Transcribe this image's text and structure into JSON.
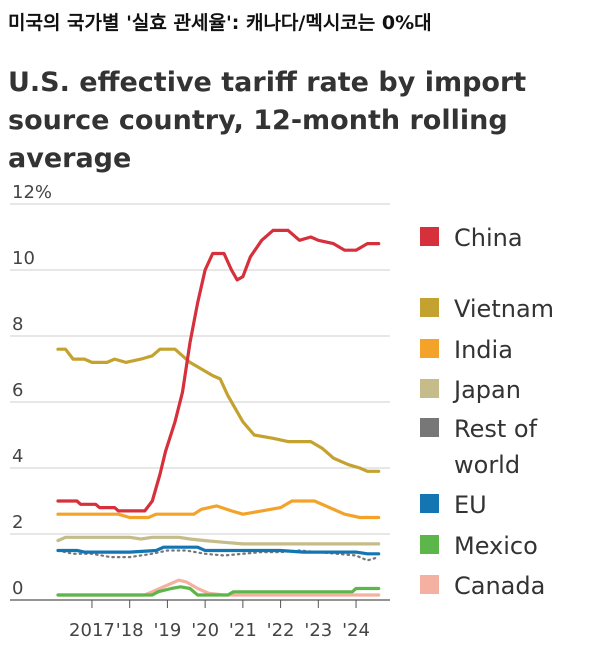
{
  "headline": "미국의 국가별 '실효 관세율': 캐나다/멕시코는 0%대",
  "title": "U.S. effective tariff rate by import source country, 12-month rolling average",
  "chart_data": {
    "type": "line",
    "title": "U.S. effective tariff rate by import source country, 12-month rolling average",
    "xlabel": "",
    "ylabel": "",
    "x_ticks": [
      "2017",
      "'18",
      "'19",
      "'20",
      "'21",
      "'22",
      "'23",
      "'24"
    ],
    "y_ticks": [
      "12%",
      "10",
      "8",
      "6",
      "4",
      "2",
      "0"
    ],
    "xlim": [
      2016.1,
      2024.9
    ],
    "ylim": [
      0,
      12
    ],
    "grid": "horizontal",
    "legend_position": "right",
    "series": [
      {
        "name": "China",
        "color": "#d5303b",
        "points": [
          [
            2016.1,
            3.0
          ],
          [
            2016.6,
            3.0
          ],
          [
            2016.7,
            2.9
          ],
          [
            2017.1,
            2.9
          ],
          [
            2017.2,
            2.8
          ],
          [
            2017.6,
            2.8
          ],
          [
            2017.7,
            2.7
          ],
          [
            2018.0,
            2.7
          ],
          [
            2018.4,
            2.7
          ],
          [
            2018.6,
            3.0
          ],
          [
            2018.8,
            3.8
          ],
          [
            2018.95,
            4.5
          ],
          [
            2019.2,
            5.4
          ],
          [
            2019.4,
            6.3
          ],
          [
            2019.6,
            7.8
          ],
          [
            2019.8,
            9.0
          ],
          [
            2020.0,
            10.0
          ],
          [
            2020.2,
            10.5
          ],
          [
            2020.5,
            10.5
          ],
          [
            2020.7,
            10.0
          ],
          [
            2020.85,
            9.7
          ],
          [
            2021.0,
            9.8
          ],
          [
            2021.2,
            10.4
          ],
          [
            2021.5,
            10.9
          ],
          [
            2021.8,
            11.2
          ],
          [
            2022.2,
            11.2
          ],
          [
            2022.5,
            10.9
          ],
          [
            2022.8,
            11.0
          ],
          [
            2023.0,
            10.9
          ],
          [
            2023.4,
            10.8
          ],
          [
            2023.7,
            10.6
          ],
          [
            2024.0,
            10.6
          ],
          [
            2024.3,
            10.8
          ],
          [
            2024.6,
            10.8
          ]
        ]
      },
      {
        "name": "Vietnam",
        "color": "#c4a22f",
        "points": [
          [
            2016.1,
            7.6
          ],
          [
            2016.3,
            7.6
          ],
          [
            2016.5,
            7.3
          ],
          [
            2016.8,
            7.3
          ],
          [
            2017.0,
            7.2
          ],
          [
            2017.4,
            7.2
          ],
          [
            2017.6,
            7.3
          ],
          [
            2017.9,
            7.2
          ],
          [
            2018.3,
            7.3
          ],
          [
            2018.6,
            7.4
          ],
          [
            2018.8,
            7.6
          ],
          [
            2019.2,
            7.6
          ],
          [
            2019.4,
            7.4
          ],
          [
            2019.6,
            7.2
          ],
          [
            2019.9,
            7.0
          ],
          [
            2020.2,
            6.8
          ],
          [
            2020.4,
            6.7
          ],
          [
            2020.6,
            6.2
          ],
          [
            2020.8,
            5.8
          ],
          [
            2021.0,
            5.4
          ],
          [
            2021.3,
            5.0
          ],
          [
            2021.8,
            4.9
          ],
          [
            2022.2,
            4.8
          ],
          [
            2022.8,
            4.8
          ],
          [
            2023.1,
            4.6
          ],
          [
            2023.4,
            4.3
          ],
          [
            2023.8,
            4.1
          ],
          [
            2024.1,
            4.0
          ],
          [
            2024.3,
            3.9
          ],
          [
            2024.6,
            3.9
          ]
        ]
      },
      {
        "name": "India",
        "color": "#f3a32a",
        "points": [
          [
            2016.1,
            2.6
          ],
          [
            2017.0,
            2.6
          ],
          [
            2017.7,
            2.6
          ],
          [
            2018.0,
            2.5
          ],
          [
            2018.5,
            2.5
          ],
          [
            2018.7,
            2.6
          ],
          [
            2019.7,
            2.6
          ],
          [
            2019.9,
            2.75
          ],
          [
            2020.3,
            2.85
          ],
          [
            2020.7,
            2.7
          ],
          [
            2021.0,
            2.6
          ],
          [
            2021.5,
            2.7
          ],
          [
            2022.0,
            2.8
          ],
          [
            2022.3,
            3.0
          ],
          [
            2022.9,
            3.0
          ],
          [
            2023.3,
            2.8
          ],
          [
            2023.7,
            2.6
          ],
          [
            2024.1,
            2.5
          ],
          [
            2024.6,
            2.5
          ]
        ]
      },
      {
        "name": "Japan",
        "color": "#c5bc8a",
        "points": [
          [
            2016.1,
            1.8
          ],
          [
            2016.3,
            1.9
          ],
          [
            2017.0,
            1.9
          ],
          [
            2018.0,
            1.9
          ],
          [
            2018.3,
            1.85
          ],
          [
            2018.6,
            1.9
          ],
          [
            2019.3,
            1.9
          ],
          [
            2019.6,
            1.85
          ],
          [
            2020.0,
            1.8
          ],
          [
            2020.5,
            1.75
          ],
          [
            2021.0,
            1.7
          ],
          [
            2022.0,
            1.7
          ],
          [
            2023.0,
            1.7
          ],
          [
            2024.0,
            1.7
          ],
          [
            2024.6,
            1.7
          ]
        ]
      },
      {
        "name": "Rest of world",
        "color": "#777777",
        "dashed": true,
        "points": [
          [
            2016.1,
            1.5
          ],
          [
            2016.5,
            1.4
          ],
          [
            2017.0,
            1.4
          ],
          [
            2017.5,
            1.3
          ],
          [
            2018.0,
            1.3
          ],
          [
            2018.6,
            1.4
          ],
          [
            2019.0,
            1.5
          ],
          [
            2019.5,
            1.5
          ],
          [
            2020.0,
            1.4
          ],
          [
            2020.5,
            1.35
          ],
          [
            2021.0,
            1.4
          ],
          [
            2021.5,
            1.45
          ],
          [
            2022.0,
            1.45
          ],
          [
            2022.5,
            1.5
          ],
          [
            2023.0,
            1.45
          ],
          [
            2023.5,
            1.4
          ],
          [
            2024.0,
            1.35
          ],
          [
            2024.3,
            1.2
          ],
          [
            2024.6,
            1.3
          ]
        ]
      },
      {
        "name": "EU",
        "color": "#1475b3",
        "points": [
          [
            2016.1,
            1.5
          ],
          [
            2016.6,
            1.5
          ],
          [
            2016.8,
            1.45
          ],
          [
            2017.5,
            1.45
          ],
          [
            2018.0,
            1.45
          ],
          [
            2018.7,
            1.5
          ],
          [
            2018.9,
            1.6
          ],
          [
            2019.8,
            1.6
          ],
          [
            2020.0,
            1.5
          ],
          [
            2020.6,
            1.5
          ],
          [
            2021.0,
            1.5
          ],
          [
            2022.0,
            1.5
          ],
          [
            2022.6,
            1.45
          ],
          [
            2023.0,
            1.45
          ],
          [
            2024.0,
            1.45
          ],
          [
            2024.3,
            1.4
          ],
          [
            2024.6,
            1.4
          ]
        ]
      },
      {
        "name": "Mexico",
        "color": "#5db649",
        "points": [
          [
            2016.1,
            0.15
          ],
          [
            2018.6,
            0.15
          ],
          [
            2018.75,
            0.25
          ],
          [
            2019.1,
            0.35
          ],
          [
            2019.35,
            0.4
          ],
          [
            2019.6,
            0.35
          ],
          [
            2019.8,
            0.15
          ],
          [
            2020.6,
            0.15
          ],
          [
            2020.75,
            0.25
          ],
          [
            2023.9,
            0.25
          ],
          [
            2024.0,
            0.35
          ],
          [
            2024.6,
            0.35
          ]
        ]
      },
      {
        "name": "Canada",
        "color": "#f4b0a0",
        "points": [
          [
            2016.1,
            0.15
          ],
          [
            2018.4,
            0.15
          ],
          [
            2018.7,
            0.3
          ],
          [
            2019.0,
            0.45
          ],
          [
            2019.3,
            0.6
          ],
          [
            2019.5,
            0.55
          ],
          [
            2019.8,
            0.35
          ],
          [
            2020.1,
            0.2
          ],
          [
            2020.5,
            0.15
          ],
          [
            2024.6,
            0.15
          ]
        ]
      }
    ],
    "legend": [
      "China",
      "",
      "Vietnam",
      "India",
      "Japan",
      "Rest of world",
      "EU",
      "Mexico",
      "Canada"
    ]
  },
  "legend_display": [
    {
      "lines": [
        "China"
      ],
      "color": "#d5303b"
    },
    {
      "lines": [
        "Vietnam"
      ],
      "color": "#c4a22f"
    },
    {
      "lines": [
        "India"
      ],
      "color": "#f3a32a"
    },
    {
      "lines": [
        "Japan"
      ],
      "color": "#c5bc8a"
    },
    {
      "lines": [
        "Rest of",
        "world"
      ],
      "color": "#777777"
    },
    {
      "lines": [
        "EU"
      ],
      "color": "#1475b3"
    },
    {
      "lines": [
        "Mexico"
      ],
      "color": "#5db649"
    },
    {
      "lines": [
        "Canada"
      ],
      "color": "#f4b0a0"
    }
  ]
}
